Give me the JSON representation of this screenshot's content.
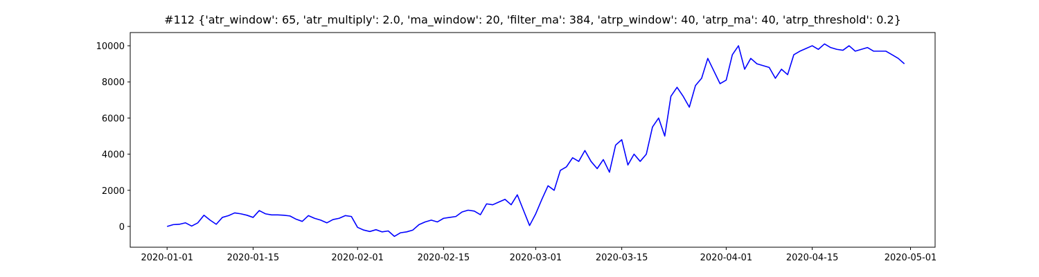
{
  "chart_data": {
    "type": "line",
    "title": "#112 {'atr_window': 65, 'atr_multiply': 2.0, 'ma_window': 20, 'filter_ma': 384, 'atrp_window': 40, 'atrp_ma': 40, 'atrp_threshold': 0.2}",
    "x": [
      "2020-01-01",
      "2020-01-02",
      "2020-01-03",
      "2020-01-04",
      "2020-01-05",
      "2020-01-06",
      "2020-01-07",
      "2020-01-08",
      "2020-01-09",
      "2020-01-10",
      "2020-01-11",
      "2020-01-12",
      "2020-01-13",
      "2020-01-14",
      "2020-01-15",
      "2020-01-16",
      "2020-01-17",
      "2020-01-18",
      "2020-01-19",
      "2020-01-20",
      "2020-01-21",
      "2020-01-22",
      "2020-01-23",
      "2020-01-24",
      "2020-01-25",
      "2020-01-26",
      "2020-01-27",
      "2020-01-28",
      "2020-01-29",
      "2020-01-30",
      "2020-01-31",
      "2020-02-01",
      "2020-02-02",
      "2020-02-03",
      "2020-02-04",
      "2020-02-05",
      "2020-02-06",
      "2020-02-07",
      "2020-02-08",
      "2020-02-09",
      "2020-02-10",
      "2020-02-11",
      "2020-02-12",
      "2020-02-13",
      "2020-02-14",
      "2020-02-15",
      "2020-02-16",
      "2020-02-17",
      "2020-02-18",
      "2020-02-19",
      "2020-02-20",
      "2020-02-21",
      "2020-02-22",
      "2020-02-23",
      "2020-02-24",
      "2020-02-25",
      "2020-02-26",
      "2020-02-27",
      "2020-02-28",
      "2020-02-29",
      "2020-03-01",
      "2020-03-02",
      "2020-03-03",
      "2020-03-04",
      "2020-03-05",
      "2020-03-06",
      "2020-03-07",
      "2020-03-08",
      "2020-03-09",
      "2020-03-10",
      "2020-03-11",
      "2020-03-12",
      "2020-03-13",
      "2020-03-14",
      "2020-03-15",
      "2020-03-16",
      "2020-03-17",
      "2020-03-18",
      "2020-03-19",
      "2020-03-20",
      "2020-03-21",
      "2020-03-22",
      "2020-03-23",
      "2020-03-24",
      "2020-03-25",
      "2020-03-26",
      "2020-03-27",
      "2020-03-28",
      "2020-03-29",
      "2020-03-30",
      "2020-03-31",
      "2020-04-01",
      "2020-04-02",
      "2020-04-03",
      "2020-04-04",
      "2020-04-05",
      "2020-04-06",
      "2020-04-07",
      "2020-04-08",
      "2020-04-09",
      "2020-04-10",
      "2020-04-11",
      "2020-04-12",
      "2020-04-13",
      "2020-04-14",
      "2020-04-15",
      "2020-04-16",
      "2020-04-17",
      "2020-04-18",
      "2020-04-19",
      "2020-04-20",
      "2020-04-21",
      "2020-04-22",
      "2020-04-23",
      "2020-04-24",
      "2020-04-25",
      "2020-04-26",
      "2020-04-27",
      "2020-04-28",
      "2020-04-29",
      "2020-04-30"
    ],
    "series": [
      {
        "color": "#0000ff",
        "values": [
          0,
          100,
          120,
          200,
          20,
          200,
          620,
          350,
          120,
          500,
          600,
          750,
          700,
          620,
          500,
          880,
          700,
          640,
          640,
          620,
          580,
          400,
          280,
          600,
          450,
          350,
          200,
          380,
          450,
          600,
          550,
          -50,
          -200,
          -280,
          -180,
          -300,
          -250,
          -550,
          -350,
          -300,
          -200,
          100,
          250,
          350,
          250,
          450,
          500,
          550,
          800,
          900,
          850,
          650,
          1250,
          1200,
          1350,
          1500,
          1200,
          1750,
          900,
          50,
          700,
          1500,
          2250,
          2000,
          3100,
          3300,
          3800,
          3600,
          4200,
          3600,
          3200,
          3700,
          3000,
          4500,
          4800,
          3400,
          4000,
          3600,
          4000,
          5500,
          6000,
          5000,
          7200,
          7700,
          7200,
          6600,
          7800,
          8200,
          9300,
          8600,
          7900,
          8100,
          9500,
          10000,
          8700,
          9300,
          9000,
          8900,
          8800,
          8200,
          8700,
          8400,
          9500,
          9700,
          9850,
          10000,
          9800,
          10100,
          9900,
          9800,
          9750,
          10000,
          9700,
          9800,
          9900,
          9700,
          9700,
          9700,
          9500,
          9300,
          9000
        ]
      }
    ],
    "xlim": [
      "2019-12-26",
      "2020-05-05"
    ],
    "xticks": [
      "2020-01-01",
      "2020-01-15",
      "2020-02-01",
      "2020-02-15",
      "2020-03-01",
      "2020-03-15",
      "2020-04-01",
      "2020-04-15",
      "2020-05-01"
    ],
    "ylim": [
      -1150,
      10730
    ],
    "yticks": [
      0,
      2000,
      4000,
      6000,
      8000,
      10000
    ],
    "grid": false
  }
}
